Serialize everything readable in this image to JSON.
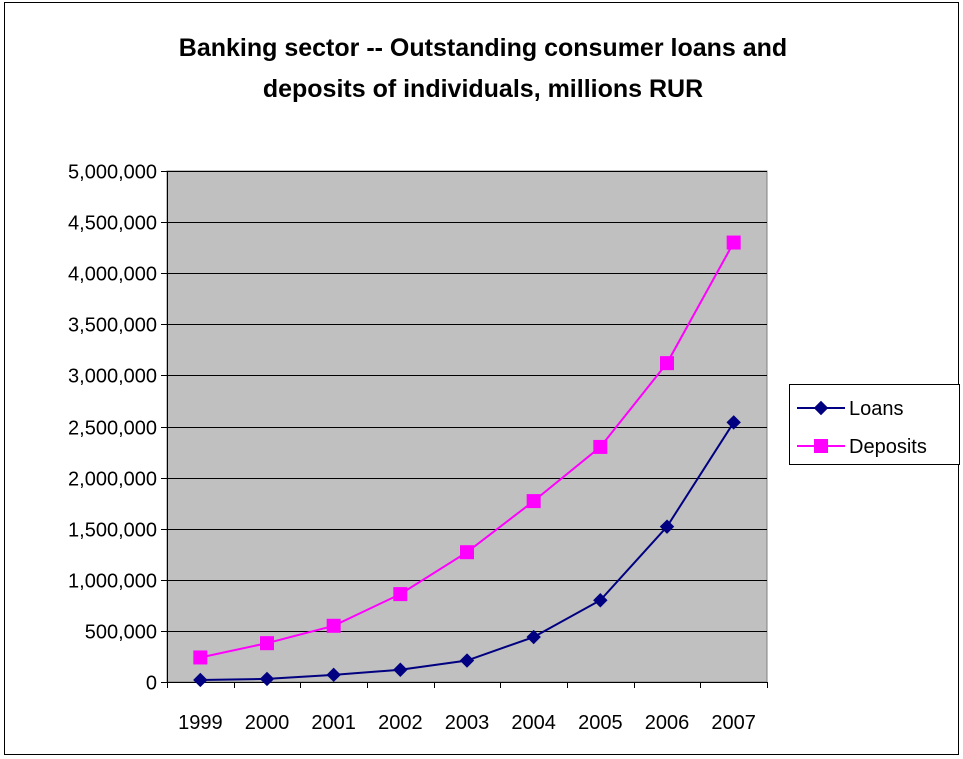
{
  "chart_data": {
    "type": "line",
    "title": "Banking sector -- Outstanding consumer loans and deposits of individuals, millions RUR",
    "title_lines": [
      "Banking sector -- Outstanding consumer loans and",
      "deposits of individuals, millions RUR"
    ],
    "xlabel": "",
    "ylabel": "",
    "categories": [
      "1999",
      "2000",
      "2001",
      "2002",
      "2003",
      "2004",
      "2005",
      "2006",
      "2007"
    ],
    "ylim": [
      0,
      5000000
    ],
    "yticks": [
      0,
      500000,
      1000000,
      1500000,
      2000000,
      2500000,
      3000000,
      3500000,
      4000000,
      4500000,
      5000000
    ],
    "ytick_labels": [
      "0",
      "500,000",
      "1,000,000",
      "1,500,000",
      "2,000,000",
      "2,500,000",
      "3,000,000",
      "3,500,000",
      "4,000,000",
      "4,500,000",
      "5,000,000"
    ],
    "grid": true,
    "legend_position": "right",
    "series": [
      {
        "name": "Loans",
        "color": "#000080",
        "marker": "diamond",
        "values": [
          20000,
          30000,
          70000,
          120000,
          210000,
          440000,
          800000,
          1520000,
          2540000
        ]
      },
      {
        "name": "Deposits",
        "color": "#FF00FF",
        "marker": "square",
        "values": [
          240000,
          380000,
          550000,
          860000,
          1270000,
          1770000,
          2300000,
          3120000,
          4300000
        ]
      }
    ],
    "colors": {
      "plot_background": "#C0C0C0",
      "gridline": "#000000"
    }
  }
}
